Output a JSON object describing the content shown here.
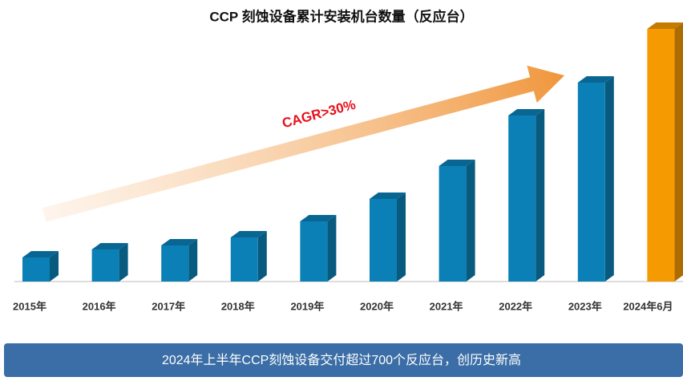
{
  "chart_data": {
    "type": "bar3d",
    "title": "CCP 刻蚀设备累计安装机台数量（反应台）",
    "annotation": "CAGR>30%",
    "banner": "2024年上半年CCP刻蚀设备交付超过700个反应台，创历史新高",
    "categories": [
      "2015年",
      "2016年",
      "2017年",
      "2018年",
      "2019年",
      "2020年",
      "2021年",
      "2022年",
      "2023年",
      "2024年6月"
    ],
    "values": [
      30,
      40,
      45,
      55,
      75,
      103,
      144,
      207,
      248,
      315
    ],
    "colors": [
      "#0b80b6",
      "#0b80b6",
      "#0b80b6",
      "#0b80b6",
      "#0b80b6",
      "#0b80b6",
      "#0b80b6",
      "#0b80b6",
      "#0b80b6",
      "#f59a00"
    ],
    "ylim": [
      0,
      320
    ]
  }
}
